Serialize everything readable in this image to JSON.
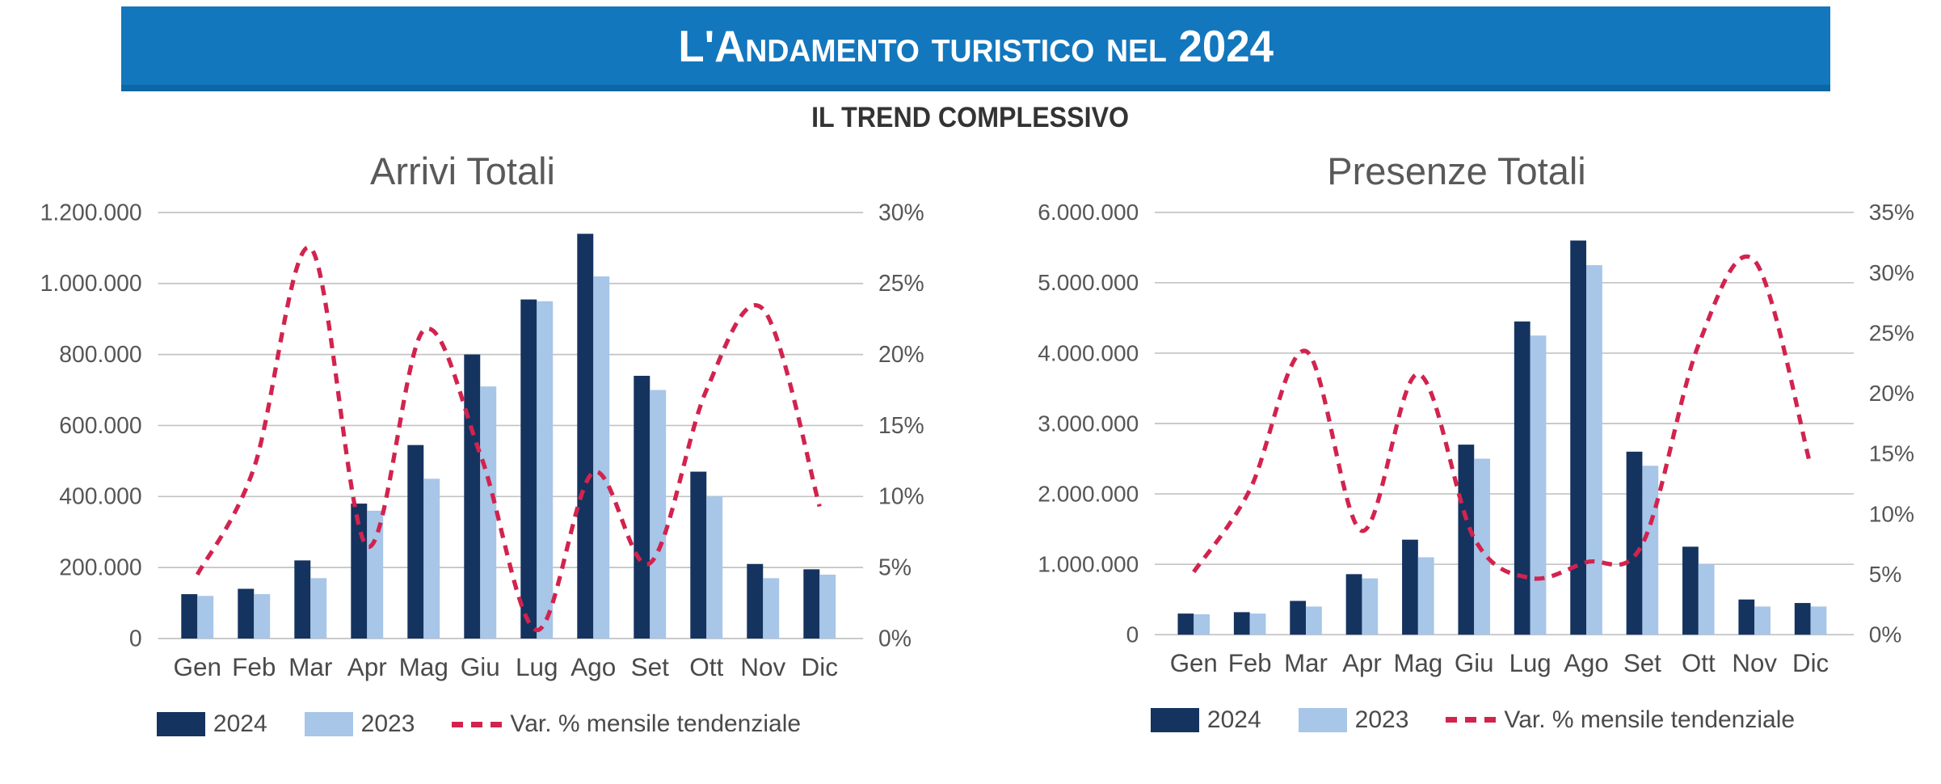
{
  "header": {
    "title": "L'Andamento turistico nel 2024",
    "bar_color": "#1377BD",
    "bar_edge_color": "#0D66A5",
    "text_color": "#FFFFFF"
  },
  "subtitle": "IL TREND COMPLESSIVO",
  "months": [
    "Gen",
    "Feb",
    "Mar",
    "Apr",
    "Mag",
    "Giu",
    "Lug",
    "Ago",
    "Set",
    "Ott",
    "Nov",
    "Dic"
  ],
  "colors": {
    "series_2024": "#15335F",
    "series_2023": "#A7C6E8",
    "trend_line": "#D2234E",
    "gridline": "#C3C3C3",
    "axis_text": "#565656"
  },
  "legend": {
    "items": [
      {
        "label": "2024",
        "swatch": "navy-square"
      },
      {
        "label": "2023",
        "swatch": "lightblue-square"
      },
      {
        "label": "Var. % mensile tendenziale",
        "swatch": "red-dashed-line"
      }
    ]
  },
  "chart_data": [
    {
      "type": "combo-bar-line",
      "title": "Arrivi Totali",
      "categories": [
        "Gen",
        "Feb",
        "Mar",
        "Apr",
        "Mag",
        "Giu",
        "Lug",
        "Ago",
        "Set",
        "Ott",
        "Nov",
        "Dic"
      ],
      "left_axis": {
        "label": "",
        "max": 1200000,
        "ticks": [
          "1.200.000",
          "1.000.000",
          "800.000",
          "600.000",
          "400.000",
          "200.000",
          "0"
        ]
      },
      "right_axis": {
        "label": "",
        "max_pct": 30,
        "ticks": [
          "30%",
          "25%",
          "20%",
          "15%",
          "10%",
          "5%",
          "0%"
        ]
      },
      "series": [
        {
          "name": "2024",
          "values": [
            125000,
            140000,
            220000,
            380000,
            545000,
            800000,
            955000,
            1140000,
            740000,
            470000,
            210000,
            195000
          ]
        },
        {
          "name": "2023",
          "values": [
            120000,
            125000,
            170000,
            360000,
            450000,
            710000,
            950000,
            1020000,
            700000,
            400000,
            170000,
            180000
          ]
        }
      ],
      "line_series": {
        "name": "Var. % mensile tendenziale",
        "values_pct": [
          4.5,
          12,
          27.5,
          6.5,
          21.7,
          13,
          0.6,
          11.7,
          5.3,
          17.5,
          23.2,
          9.3
        ]
      },
      "grid": true,
      "legend_position": "bottom"
    },
    {
      "type": "combo-bar-line",
      "title": "Presenze Totali",
      "categories": [
        "Gen",
        "Feb",
        "Mar",
        "Apr",
        "Mag",
        "Giu",
        "Lug",
        "Ago",
        "Set",
        "Ott",
        "Nov",
        "Dic"
      ],
      "left_axis": {
        "label": "",
        "max": 6000000,
        "ticks": [
          "6.000.000",
          "5.000.000",
          "4.000.000",
          "3.000.000",
          "2.000.000",
          "1.000.000",
          "0"
        ]
      },
      "right_axis": {
        "label": "",
        "max_pct": 35,
        "ticks": [
          "35%",
          "30%",
          "25%",
          "20%",
          "15%",
          "10%",
          "5%",
          "0%"
        ]
      },
      "series": [
        {
          "name": "2024",
          "values": [
            300000,
            320000,
            480000,
            860000,
            1350000,
            2700000,
            4450000,
            5600000,
            2600000,
            1250000,
            500000,
            450000
          ]
        },
        {
          "name": "2023",
          "values": [
            290000,
            300000,
            400000,
            800000,
            1100000,
            2500000,
            4250000,
            5250000,
            2400000,
            1000000,
            400000,
            400000
          ]
        }
      ],
      "line_series": {
        "name": "Var. % mensile tendenziale",
        "values_pct": [
          5.2,
          12,
          23.5,
          8.6,
          21.6,
          8,
          4.7,
          6,
          7.5,
          24,
          31,
          14
        ]
      },
      "grid": true,
      "legend_position": "bottom"
    }
  ]
}
